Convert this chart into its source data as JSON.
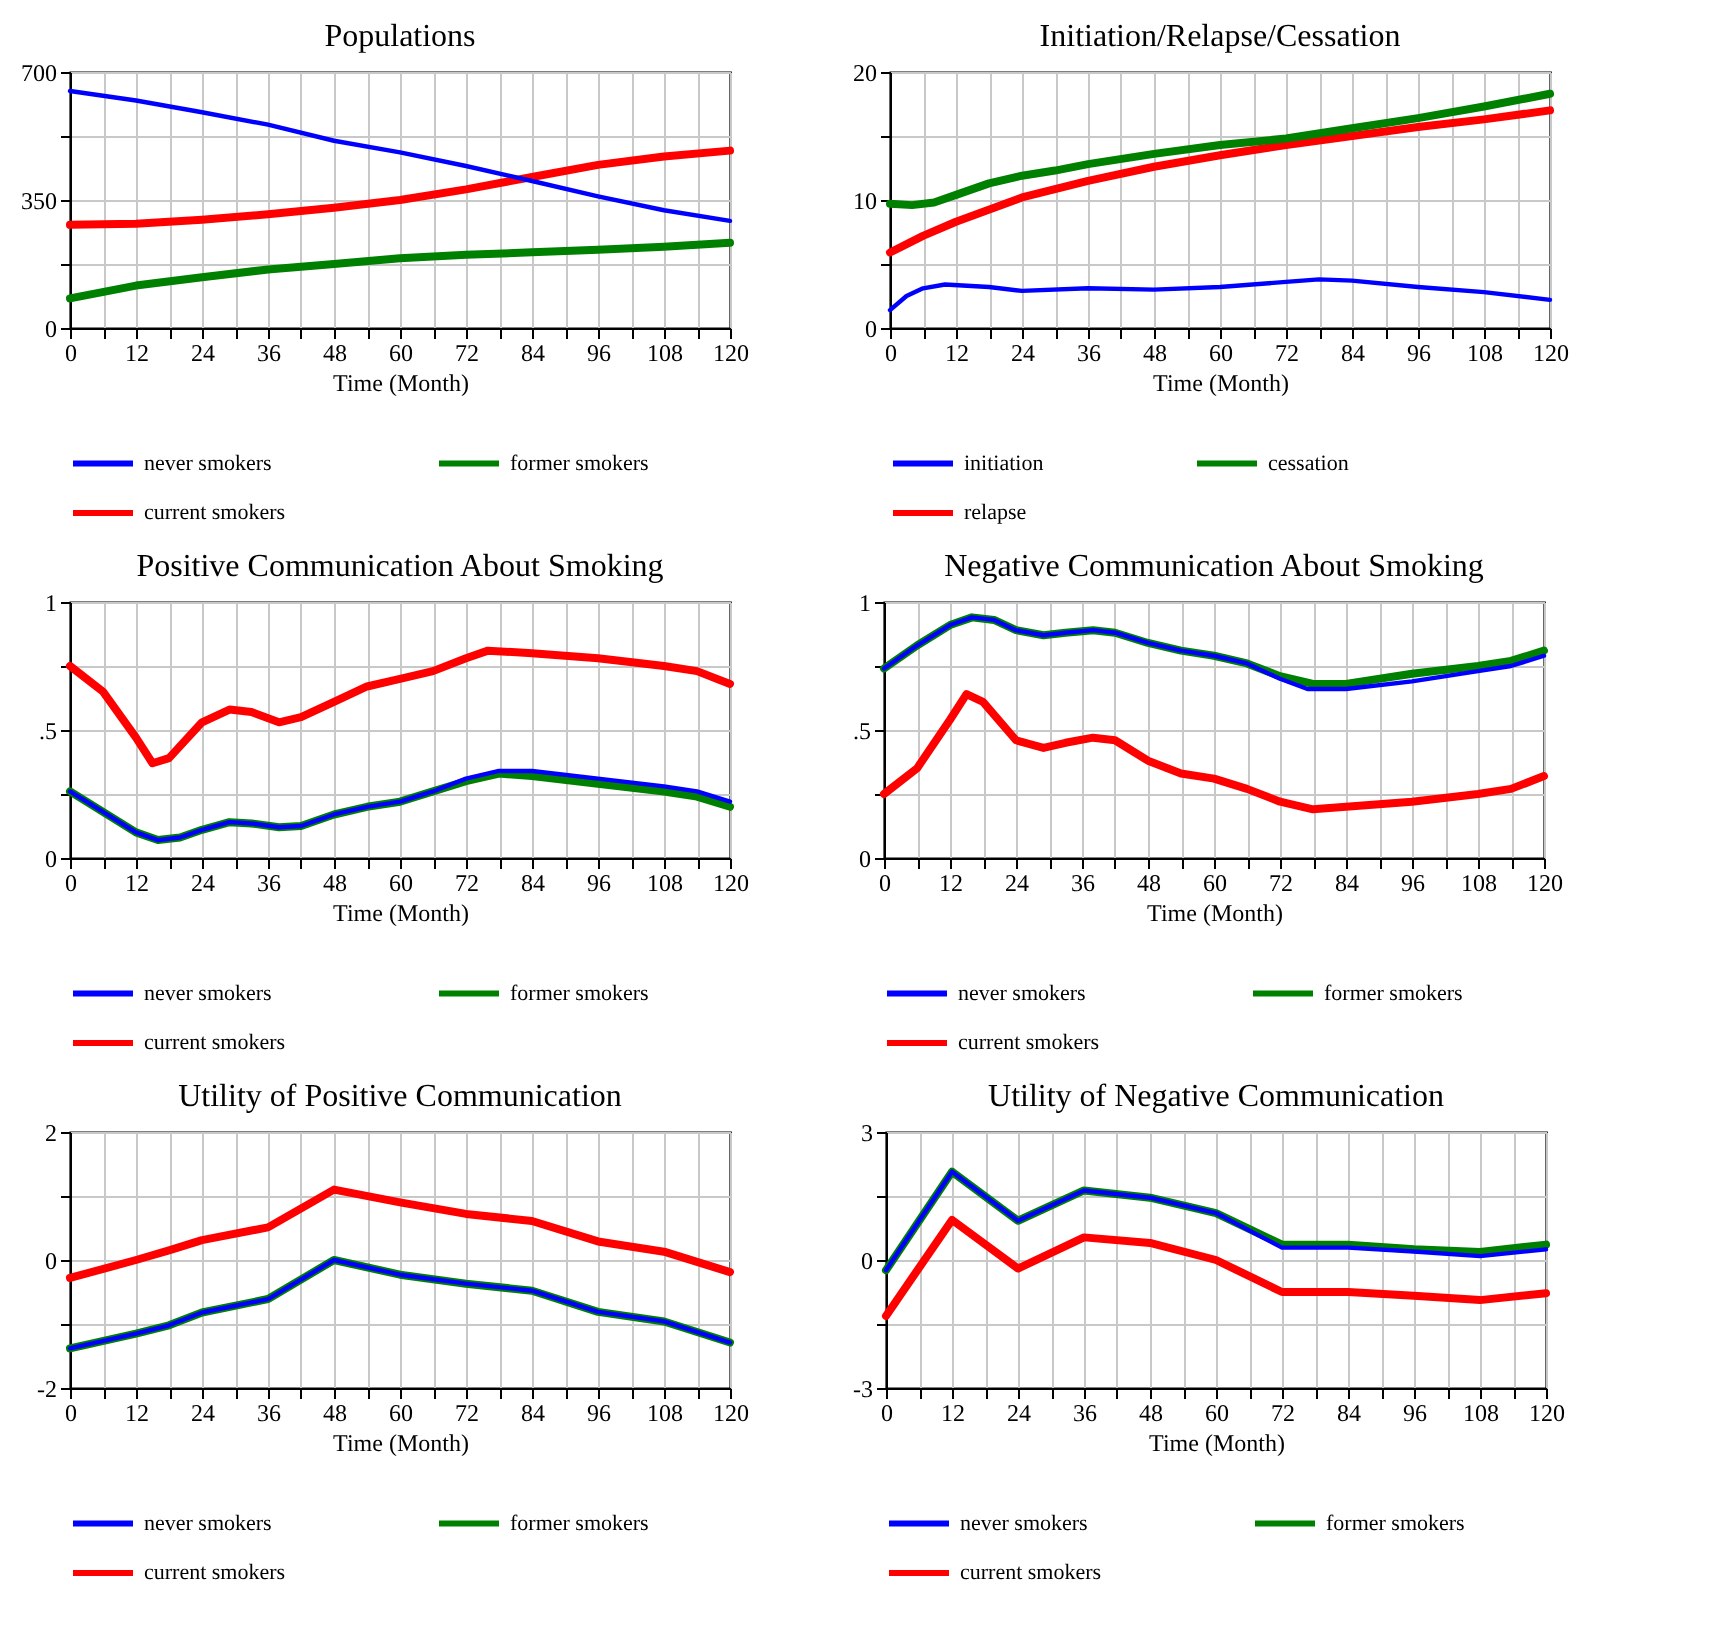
{
  "chart_data": [
    {
      "type": "line",
      "title": "Populations",
      "xlabel": "Time (Month)",
      "xlim": [
        0,
        120
      ],
      "xticks": [
        0,
        {
          "value": 6,
          "label": null
        },
        12,
        {
          "value": 18,
          "label": null
        },
        24,
        {
          "value": 30,
          "label": null
        },
        36,
        {
          "value": 42,
          "label": null
        },
        48,
        {
          "value": 54,
          "label": null
        },
        60,
        {
          "value": 66,
          "label": null
        },
        72,
        {
          "value": 78,
          "label": null
        },
        84,
        {
          "value": 90,
          "label": null
        },
        96,
        {
          "value": 102,
          "label": null
        },
        108,
        {
          "value": 114,
          "label": null
        },
        120
      ],
      "ylim": [
        0,
        700
      ],
      "yticks": [
        0,
        {
          "value": 175,
          "label": null
        },
        350,
        {
          "value": 525,
          "label": null
        },
        700
      ],
      "grid": true,
      "legend": "bottom",
      "marker": "none",
      "series": [
        {
          "name": "never smokers",
          "color": "#0000ff",
          "x": [
            0,
            12,
            24,
            36,
            48,
            60,
            72,
            84,
            96,
            108,
            120
          ],
          "values": [
            648,
            622,
            590,
            556,
            512,
            480,
            443,
            402,
            360,
            322,
            293
          ]
        },
        {
          "name": "former smokers",
          "color": "#008000",
          "x": [
            0,
            12,
            24,
            36,
            48,
            60,
            72,
            84,
            96,
            108,
            120
          ],
          "values": [
            81,
            116,
            139,
            160,
            175,
            191,
            200,
            207,
            214,
            222,
            233
          ]
        },
        {
          "name": "current smokers",
          "color": "#ff0000",
          "x": [
            0,
            12,
            24,
            36,
            48,
            60,
            72,
            84,
            96,
            108,
            120
          ],
          "values": [
            282,
            285,
            296,
            311,
            329,
            350,
            379,
            413,
            446,
            469,
            485
          ]
        }
      ]
    },
    {
      "type": "line",
      "title": "Initiation/Relapse/Cessation",
      "xlabel": "Time (Month)",
      "xlim": [
        0,
        120
      ],
      "xticks": [
        0,
        {
          "value": 6,
          "label": null
        },
        12,
        {
          "value": 18,
          "label": null
        },
        24,
        {
          "value": 30,
          "label": null
        },
        36,
        {
          "value": 42,
          "label": null
        },
        48,
        {
          "value": 54,
          "label": null
        },
        60,
        {
          "value": 66,
          "label": null
        },
        72,
        {
          "value": 78,
          "label": null
        },
        84,
        {
          "value": 90,
          "label": null
        },
        96,
        {
          "value": 102,
          "label": null
        },
        108,
        {
          "value": 114,
          "label": null
        },
        120
      ],
      "ylim": [
        0,
        20
      ],
      "yticks": [
        0,
        {
          "value": 5,
          "label": null
        },
        10,
        {
          "value": 15,
          "label": null
        },
        20
      ],
      "grid": true,
      "legend": "bottom",
      "marker": "none",
      "series": [
        {
          "name": "initiation",
          "color": "#0000ff",
          "x": [
            0,
            3,
            6,
            10,
            18,
            24,
            36,
            48,
            60,
            72,
            78,
            84,
            96,
            108,
            120
          ],
          "values": [
            1.4,
            2.5,
            3.1,
            3.4,
            3.2,
            2.9,
            3.1,
            3.0,
            3.2,
            3.6,
            3.8,
            3.7,
            3.2,
            2.8,
            2.2
          ]
        },
        {
          "name": "cessation",
          "color": "#008000",
          "x": [
            0,
            4,
            8,
            12,
            18,
            24,
            30,
            36,
            48,
            60,
            72,
            84,
            96,
            108,
            120
          ],
          "values": [
            9.7,
            9.6,
            9.8,
            10.4,
            11.3,
            11.9,
            12.3,
            12.8,
            13.6,
            14.3,
            14.8,
            15.6,
            16.4,
            17.3,
            18.3
          ]
        },
        {
          "name": "relapse",
          "color": "#ff0000",
          "x": [
            0,
            6,
            12,
            24,
            36,
            48,
            60,
            72,
            84,
            96,
            108,
            120
          ],
          "values": [
            5.9,
            7.2,
            8.3,
            10.2,
            11.5,
            12.6,
            13.5,
            14.3,
            15.0,
            15.7,
            16.3,
            17.0
          ]
        }
      ]
    },
    {
      "type": "line",
      "title": "Positive Communication About Smoking",
      "xlabel": "Time (Month)",
      "xlim": [
        0,
        120
      ],
      "xticks": [
        0,
        {
          "value": 6,
          "label": null
        },
        12,
        {
          "value": 18,
          "label": null
        },
        24,
        {
          "value": 30,
          "label": null
        },
        36,
        {
          "value": 42,
          "label": null
        },
        48,
        {
          "value": 54,
          "label": null
        },
        60,
        {
          "value": 66,
          "label": null
        },
        72,
        {
          "value": 78,
          "label": null
        },
        84,
        {
          "value": 90,
          "label": null
        },
        96,
        {
          "value": 102,
          "label": null
        },
        108,
        {
          "value": 114,
          "label": null
        },
        120
      ],
      "ylim": [
        0,
        1
      ],
      "yticks": [
        0,
        {
          "value": 0.25,
          "label": null
        },
        {
          "value": 0.5,
          "label": ".5"
        },
        {
          "value": 0.75,
          "label": null
        },
        1
      ],
      "grid": true,
      "legend": "bottom",
      "marker": "none",
      "series": [
        {
          "name": "never smokers",
          "color": "#0000ff",
          "x": [
            0,
            6,
            12,
            16,
            20,
            24,
            29,
            33,
            38,
            42,
            48,
            54,
            60,
            66,
            72,
            78,
            84,
            96,
            108,
            114,
            120
          ],
          "values": [
            0.26,
            0.18,
            0.1,
            0.07,
            0.08,
            0.11,
            0.14,
            0.135,
            0.12,
            0.125,
            0.17,
            0.2,
            0.22,
            0.26,
            0.31,
            0.34,
            0.34,
            0.31,
            0.28,
            0.26,
            0.22
          ]
        },
        {
          "name": "former smokers",
          "color": "#008000",
          "x": [
            0,
            6,
            12,
            16,
            20,
            24,
            29,
            33,
            38,
            42,
            48,
            54,
            60,
            66,
            72,
            78,
            84,
            96,
            108,
            114,
            120
          ],
          "values": [
            0.26,
            0.18,
            0.1,
            0.07,
            0.08,
            0.11,
            0.14,
            0.135,
            0.12,
            0.125,
            0.17,
            0.2,
            0.22,
            0.26,
            0.3,
            0.33,
            0.32,
            0.29,
            0.26,
            0.24,
            0.2
          ]
        },
        {
          "name": "current smokers",
          "color": "#ff0000",
          "x": [
            0,
            6,
            12,
            15,
            18,
            24,
            29,
            33,
            38,
            42,
            48,
            54,
            60,
            66,
            72,
            76,
            84,
            96,
            108,
            114,
            120
          ],
          "values": [
            0.75,
            0.65,
            0.47,
            0.37,
            0.39,
            0.53,
            0.58,
            0.57,
            0.53,
            0.55,
            0.61,
            0.67,
            0.7,
            0.73,
            0.78,
            0.81,
            0.8,
            0.78,
            0.75,
            0.73,
            0.68
          ]
        }
      ]
    },
    {
      "type": "line",
      "title": "Negative Communication About Smoking",
      "xlabel": "Time (Month)",
      "xlim": [
        0,
        120
      ],
      "xticks": [
        0,
        {
          "value": 6,
          "label": null
        },
        12,
        {
          "value": 18,
          "label": null
        },
        24,
        {
          "value": 30,
          "label": null
        },
        36,
        {
          "value": 42,
          "label": null
        },
        48,
        {
          "value": 54,
          "label": null
        },
        60,
        {
          "value": 66,
          "label": null
        },
        72,
        {
          "value": 78,
          "label": null
        },
        84,
        {
          "value": 90,
          "label": null
        },
        96,
        {
          "value": 102,
          "label": null
        },
        108,
        {
          "value": 114,
          "label": null
        },
        120
      ],
      "ylim": [
        0,
        1
      ],
      "yticks": [
        0,
        {
          "value": 0.25,
          "label": null
        },
        {
          "value": 0.5,
          "label": ".5"
        },
        {
          "value": 0.75,
          "label": null
        },
        1
      ],
      "grid": true,
      "legend": "bottom",
      "marker": "none",
      "series": [
        {
          "name": "never smokers",
          "color": "#0000ff",
          "x": [
            0,
            6,
            12,
            16,
            20,
            24,
            29,
            33,
            38,
            42,
            48,
            54,
            60,
            66,
            72,
            77,
            84,
            96,
            108,
            114,
            120
          ],
          "values": [
            0.74,
            0.83,
            0.91,
            0.94,
            0.93,
            0.89,
            0.87,
            0.88,
            0.89,
            0.88,
            0.84,
            0.81,
            0.79,
            0.76,
            0.7,
            0.66,
            0.66,
            0.69,
            0.73,
            0.75,
            0.79
          ]
        },
        {
          "name": "former smokers",
          "color": "#008000",
          "x": [
            0,
            6,
            12,
            16,
            20,
            24,
            29,
            33,
            38,
            42,
            48,
            54,
            60,
            66,
            72,
            78,
            84,
            96,
            108,
            114,
            120
          ],
          "values": [
            0.74,
            0.83,
            0.91,
            0.94,
            0.93,
            0.89,
            0.87,
            0.88,
            0.89,
            0.88,
            0.84,
            0.81,
            0.79,
            0.76,
            0.71,
            0.68,
            0.68,
            0.72,
            0.75,
            0.77,
            0.81
          ]
        },
        {
          "name": "current smokers",
          "color": "#ff0000",
          "x": [
            0,
            6,
            12,
            15,
            18,
            24,
            29,
            33,
            38,
            42,
            48,
            54,
            60,
            66,
            72,
            78,
            84,
            96,
            108,
            114,
            120
          ],
          "values": [
            0.25,
            0.35,
            0.54,
            0.64,
            0.61,
            0.46,
            0.43,
            0.45,
            0.47,
            0.46,
            0.38,
            0.33,
            0.31,
            0.27,
            0.22,
            0.19,
            0.2,
            0.22,
            0.25,
            0.27,
            0.32
          ]
        }
      ]
    },
    {
      "type": "line",
      "title": "Utility of Positive Communication",
      "xlabel": "Time (Month)",
      "xlim": [
        0,
        120
      ],
      "xticks": [
        0,
        {
          "value": 6,
          "label": null
        },
        12,
        {
          "value": 18,
          "label": null
        },
        24,
        {
          "value": 30,
          "label": null
        },
        36,
        {
          "value": 42,
          "label": null
        },
        48,
        {
          "value": 54,
          "label": null
        },
        60,
        {
          "value": 66,
          "label": null
        },
        72,
        {
          "value": 78,
          "label": null
        },
        84,
        {
          "value": 90,
          "label": null
        },
        96,
        {
          "value": 102,
          "label": null
        },
        108,
        {
          "value": 114,
          "label": null
        },
        120
      ],
      "ylim": [
        -2,
        2
      ],
      "yticks": [
        -2,
        {
          "value": -1,
          "label": null
        },
        0,
        {
          "value": 1,
          "label": null
        },
        2
      ],
      "grid": true,
      "legend": "bottom",
      "marker": "none",
      "series": [
        {
          "name": "never smokers",
          "color": "#0000ff",
          "x": [
            0,
            12,
            18,
            24,
            36,
            48,
            60,
            72,
            84,
            96,
            108,
            120
          ],
          "values": [
            -1.38,
            -1.15,
            -1.02,
            -0.82,
            -0.61,
            0,
            -0.23,
            -0.37,
            -0.48,
            -0.81,
            -0.96,
            -1.29
          ]
        },
        {
          "name": "former smokers",
          "color": "#008000",
          "x": [
            0,
            12,
            18,
            24,
            36,
            48,
            60,
            72,
            84,
            96,
            108,
            120
          ],
          "values": [
            -1.38,
            -1.15,
            -1.02,
            -0.82,
            -0.61,
            0,
            -0.23,
            -0.37,
            -0.48,
            -0.81,
            -0.96,
            -1.29
          ]
        },
        {
          "name": "current smokers",
          "color": "#ff0000",
          "x": [
            0,
            12,
            18,
            24,
            36,
            48,
            60,
            72,
            84,
            96,
            108,
            120
          ],
          "values": [
            -0.28,
            0,
            0.15,
            0.31,
            0.51,
            1.1,
            0.9,
            0.72,
            0.61,
            0.29,
            0.13,
            -0.19
          ]
        }
      ]
    },
    {
      "type": "line",
      "title": "Utility of Negative Communication",
      "xlabel": "Time (Month)",
      "xlim": [
        0,
        120
      ],
      "xticks": [
        0,
        {
          "value": 6,
          "label": null
        },
        12,
        {
          "value": 18,
          "label": null
        },
        24,
        {
          "value": 30,
          "label": null
        },
        36,
        {
          "value": 42,
          "label": null
        },
        48,
        {
          "value": 54,
          "label": null
        },
        60,
        {
          "value": 66,
          "label": null
        },
        72,
        {
          "value": 78,
          "label": null
        },
        84,
        {
          "value": 90,
          "label": null
        },
        96,
        {
          "value": 102,
          "label": null
        },
        108,
        {
          "value": 114,
          "label": null
        },
        120
      ],
      "ylim": [
        -3,
        3
      ],
      "yticks": [
        -3,
        {
          "value": -1.5,
          "label": null
        },
        0,
        {
          "value": 1.5,
          "label": null
        },
        3
      ],
      "grid": true,
      "legend": "bottom",
      "marker": "none",
      "series": [
        {
          "name": "never smokers",
          "color": "#0000ff",
          "x": [
            0,
            12,
            24,
            36,
            48,
            60,
            72,
            84,
            96,
            108,
            120
          ],
          "values": [
            -0.24,
            2.07,
            0.92,
            1.63,
            1.46,
            1.1,
            0.29,
            0.29,
            0.2,
            0.09,
            0.25
          ]
        },
        {
          "name": "former smokers",
          "color": "#008000",
          "x": [
            0,
            12,
            24,
            36,
            48,
            60,
            72,
            84,
            96,
            108,
            120
          ],
          "values": [
            -0.24,
            2.07,
            0.92,
            1.63,
            1.46,
            1.1,
            0.36,
            0.36,
            0.25,
            0.19,
            0.36
          ]
        },
        {
          "name": "current smokers",
          "color": "#ff0000",
          "x": [
            0,
            12,
            24,
            36,
            48,
            60,
            72,
            84,
            96,
            108,
            120
          ],
          "values": [
            -1.31,
            0.94,
            -0.2,
            0.53,
            0.4,
            0,
            -0.75,
            -0.75,
            -0.84,
            -0.94,
            -0.78
          ]
        }
      ]
    }
  ]
}
